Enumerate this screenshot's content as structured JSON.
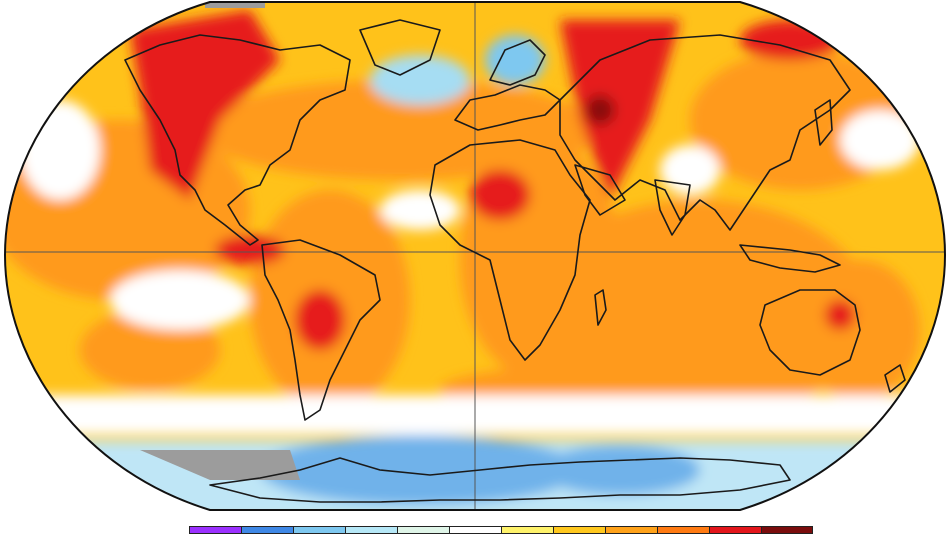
{
  "map": {
    "projection": "robinson-like",
    "palette": {
      "land_outline": "#1a1a1a",
      "grid_line": "#555555",
      "no_data": "#9c9c9c"
    },
    "anomaly_colors": [
      "#7f00ff",
      "#4a90e2",
      "#7ec8f0",
      "#bfe9f5",
      "#e6f7ee",
      "#ffffff",
      "#fff27a",
      "#ffc21a",
      "#ff9a1a",
      "#ff6a0a",
      "#e61a1a",
      "#8a0a0a"
    ]
  },
  "legend": {
    "swatches": [
      {
        "color": "#9b30ff"
      },
      {
        "color": "#3f88e6"
      },
      {
        "color": "#7ec8f0"
      },
      {
        "color": "#b6e8f7"
      },
      {
        "color": "#dff5e8"
      },
      {
        "color": "#ffffff"
      },
      {
        "color": "#fff36b"
      },
      {
        "color": "#ffc81e"
      },
      {
        "color": "#ffa21a"
      },
      {
        "color": "#ff7a12"
      },
      {
        "color": "#e3161b"
      },
      {
        "color": "#7a0c0c"
      }
    ]
  }
}
